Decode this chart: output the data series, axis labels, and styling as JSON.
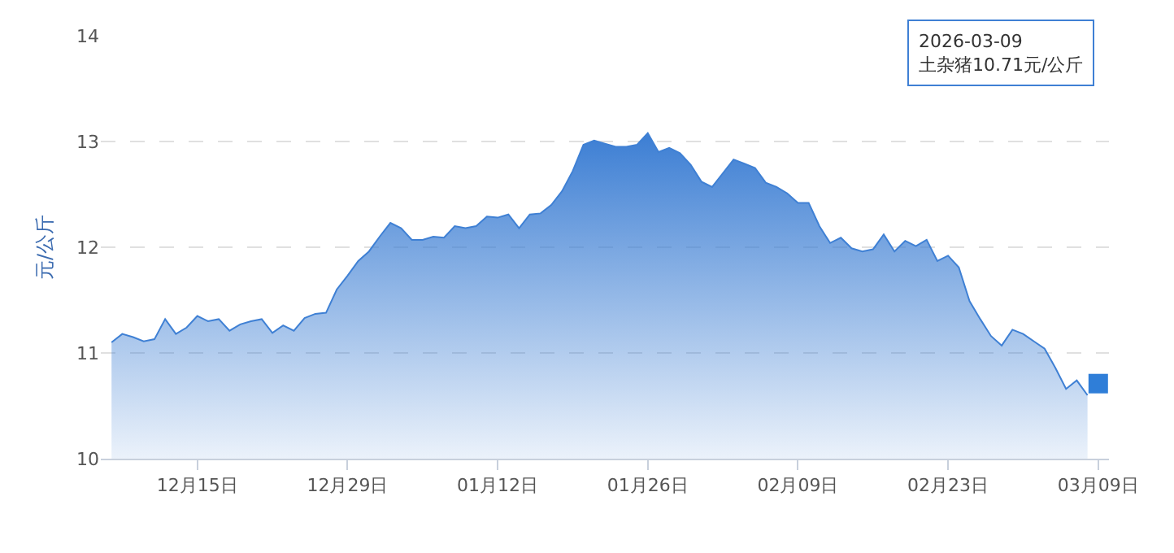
{
  "chart_data": {
    "type": "area",
    "ylabel": "元/公斤",
    "xlim": [
      "2025-12-06",
      "2026-03-10"
    ],
    "ylim": [
      10,
      14
    ],
    "xticks": [
      {
        "value": "2025-12-15",
        "label": "12月15日"
      },
      {
        "value": "2025-12-29",
        "label": "12月29日"
      },
      {
        "value": "2026-01-12",
        "label": "01月12日"
      },
      {
        "value": "2026-01-26",
        "label": "01月26日"
      },
      {
        "value": "2026-02-09",
        "label": "02月09日"
      },
      {
        "value": "2026-02-23",
        "label": "02月23日"
      },
      {
        "value": "2026-03-09",
        "label": "03月09日"
      }
    ],
    "yticks": [
      10,
      11,
      12,
      13,
      14
    ],
    "grid": "y",
    "marker": "none",
    "line_style": "solid",
    "series": [
      {
        "color": "#3f80d4",
        "x": [
          "2025-12-07",
          "2025-12-08",
          "2025-12-09",
          "2025-12-10",
          "2025-12-11",
          "2025-12-12",
          "2025-12-13",
          "2025-12-14",
          "2025-12-15",
          "2025-12-16",
          "2025-12-17",
          "2025-12-18",
          "2025-12-19",
          "2025-12-20",
          "2025-12-21",
          "2025-12-22",
          "2025-12-23",
          "2025-12-24",
          "2025-12-25",
          "2025-12-26",
          "2025-12-27",
          "2025-12-28",
          "2025-12-29",
          "2025-12-30",
          "2025-12-31",
          "2026-01-01",
          "2026-01-02",
          "2026-01-03",
          "2026-01-04",
          "2026-01-05",
          "2026-01-06",
          "2026-01-07",
          "2026-01-08",
          "2026-01-09",
          "2026-01-10",
          "2026-01-11",
          "2026-01-12",
          "2026-01-13",
          "2026-01-14",
          "2026-01-15",
          "2026-01-16",
          "2026-01-17",
          "2026-01-18",
          "2026-01-19",
          "2026-01-20",
          "2026-01-21",
          "2026-01-22",
          "2026-01-23",
          "2026-01-24",
          "2026-01-25",
          "2026-01-26",
          "2026-01-27",
          "2026-01-28",
          "2026-01-29",
          "2026-01-30",
          "2026-01-31",
          "2026-02-01",
          "2026-02-02",
          "2026-02-03",
          "2026-02-04",
          "2026-02-05",
          "2026-02-06",
          "2026-02-07",
          "2026-02-08",
          "2026-02-09",
          "2026-02-10",
          "2026-02-11",
          "2026-02-12",
          "2026-02-13",
          "2026-02-14",
          "2026-02-15",
          "2026-02-16",
          "2026-02-17",
          "2026-02-18",
          "2026-02-19",
          "2026-02-20",
          "2026-02-21",
          "2026-02-22",
          "2026-02-23",
          "2026-02-24",
          "2026-02-25",
          "2026-02-26",
          "2026-02-27",
          "2026-02-28",
          "2026-03-01",
          "2026-03-02",
          "2026-03-03",
          "2026-03-04",
          "2026-03-05",
          "2026-03-06",
          "2026-03-07",
          "2026-03-08"
        ],
        "values": [
          11.1,
          11.18,
          11.15,
          11.11,
          11.13,
          11.32,
          11.18,
          11.24,
          11.35,
          11.3,
          11.32,
          11.21,
          11.27,
          11.3,
          11.32,
          11.19,
          11.26,
          11.21,
          11.33,
          11.37,
          11.38,
          11.6,
          11.73,
          11.87,
          11.96,
          12.1,
          12.23,
          12.18,
          12.07,
          12.07,
          12.1,
          12.09,
          12.2,
          12.18,
          12.2,
          12.29,
          12.28,
          12.31,
          12.18,
          12.31,
          12.32,
          12.4,
          12.53,
          12.72,
          12.97,
          13.01,
          12.98,
          12.95,
          12.95,
          12.97,
          13.08,
          12.9,
          12.94,
          12.89,
          12.78,
          12.62,
          12.57,
          12.7,
          12.83,
          12.79,
          12.75,
          12.61,
          12.57,
          12.51,
          12.42,
          12.42,
          12.2,
          12.04,
          12.09,
          11.99,
          11.96,
          11.98,
          12.12,
          11.96,
          12.06,
          12.01,
          12.07,
          11.87,
          11.92,
          11.81,
          11.49,
          11.32,
          11.16,
          11.07,
          11.22,
          11.18,
          11.11,
          11.04,
          10.86,
          10.66,
          10.74,
          10.6
        ]
      },
      {
        "type": "scatter",
        "marker": "square",
        "color": "#2f7ed8",
        "x": [
          "2026-03-09"
        ],
        "values": [
          10.71
        ]
      }
    ],
    "annotations": [
      "2026-03-09\n土杂猪10.71元/公斤"
    ]
  }
}
